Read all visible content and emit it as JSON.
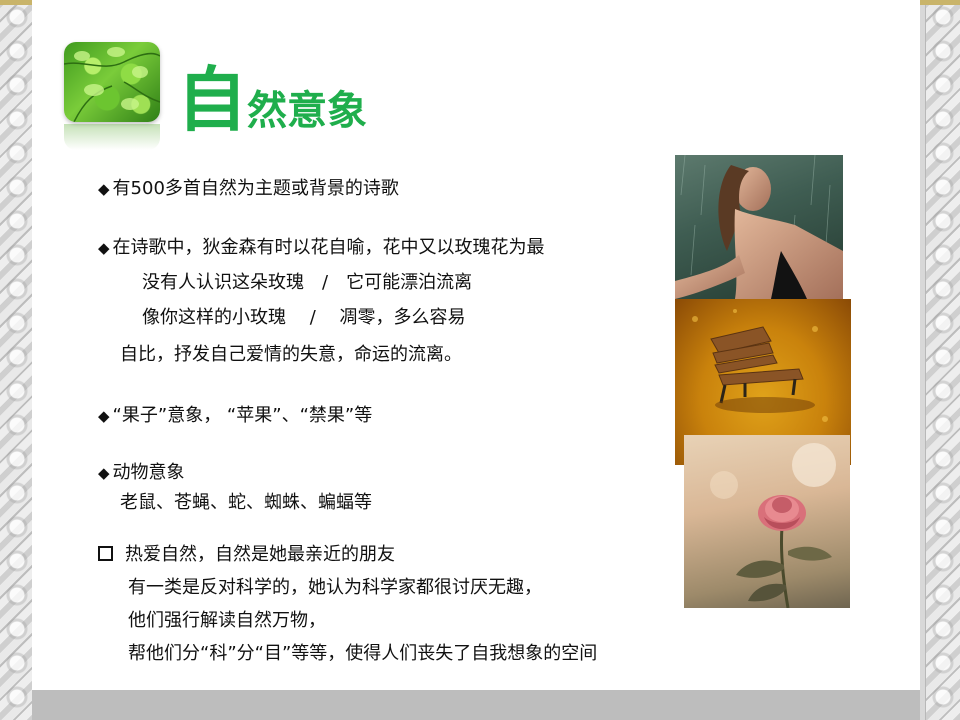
{
  "title": {
    "big": "自",
    "rest": "然意象"
  },
  "icons": {
    "bullet": "◆",
    "square_bullet": "square-icon"
  },
  "colors": {
    "title": "#1fae4c",
    "text": "#111111",
    "border": "#d0d0d0"
  },
  "content": {
    "line1": "有500多首自然为主题或背景的诗歌",
    "line2": "在诗歌中，狄金森有时以花自喻，花中又以玫瑰花为最",
    "line3": "没有人认识这朵玫瑰　/　它可能漂泊流离",
    "line4": "像你这样的小玫瑰　 /　 凋零，多么容易",
    "line5": "自比，抒发自己爱情的失意，命运的流离。",
    "line6": "“果子”意象，  “苹果”、“禁果”等",
    "line7": "动物意象",
    "line8": "老鼠、苍蝇、蛇、蜘蛛、蝙蝠等",
    "line9": "热爱自然，自然是她最亲近的朋友",
    "line10": "有一类是反对科学的，她认为科学家都很讨厌无趣，",
    "line11": "他们强行解读自然万物，",
    "line12": "帮他们分“科”分“目”等等，使得人们丧失了自我想象的空间"
  }
}
